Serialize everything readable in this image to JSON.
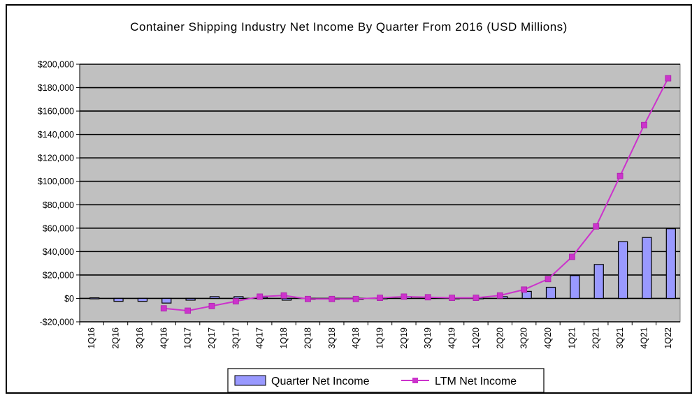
{
  "chart_data": {
    "type": "bar",
    "title": "Container Shipping Industry Net Income By Quarter From 2016 (USD Millions)",
    "xlabel": "",
    "ylabel": "",
    "categories": [
      "1Q16",
      "2Q16",
      "3Q16",
      "4Q16",
      "1Q17",
      "2Q17",
      "3Q17",
      "4Q17",
      "1Q18",
      "2Q18",
      "3Q18",
      "4Q18",
      "1Q19",
      "2Q19",
      "3Q19",
      "4Q19",
      "1Q20",
      "2Q20",
      "3Q20",
      "4Q20",
      "1Q21",
      "2Q21",
      "3Q21",
      "4Q21",
      "1Q22"
    ],
    "ylim": [
      -20000,
      200000
    ],
    "y_ticks": [
      -20000,
      0,
      20000,
      40000,
      60000,
      80000,
      100000,
      120000,
      140000,
      160000,
      180000,
      200000
    ],
    "y_tick_labels": [
      "-$20,000",
      "$0",
      "$20,000",
      "$40,000",
      "$60,000",
      "$80,000",
      "$100,000",
      "$120,000",
      "$140,000",
      "$160,000",
      "$180,000",
      "$200,000"
    ],
    "grid": true,
    "legend_position": "bottom",
    "series": [
      {
        "name": "Quarter Net Income",
        "type": "bar",
        "color": "#9999ff",
        "values": [
          500,
          -2500,
          -2500,
          -4000,
          -1500,
          1500,
          1500,
          1000,
          -1500,
          -500,
          -500,
          -500,
          500,
          1500,
          1000,
          500,
          500,
          1500,
          6000,
          9500,
          19500,
          29000,
          48500,
          52000,
          59500
        ]
      },
      {
        "name": "LTM Net Income",
        "type": "line",
        "color": "#cc33cc",
        "values": [
          null,
          null,
          null,
          -8500,
          -10500,
          -6500,
          -2500,
          1500,
          2500,
          -500,
          -500,
          -500,
          500,
          1500,
          1000,
          500,
          500,
          2500,
          7500,
          16500,
          35500,
          61500,
          104500,
          148000,
          188000
        ]
      }
    ]
  }
}
